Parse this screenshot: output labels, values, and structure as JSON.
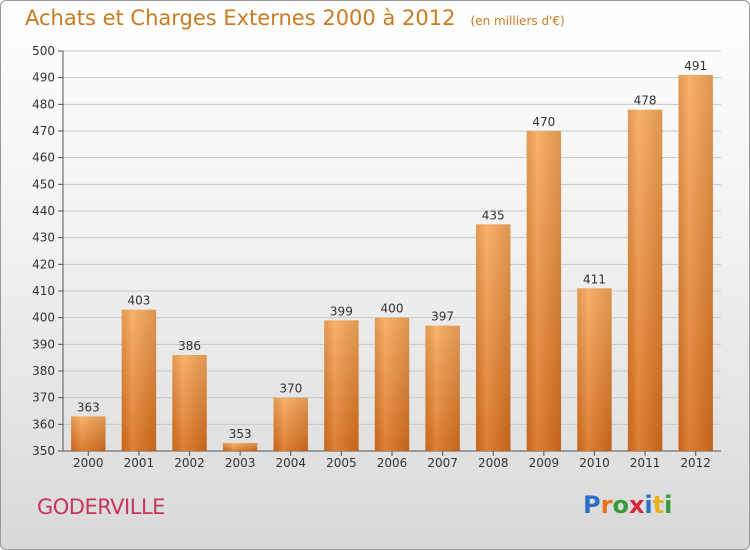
{
  "header": {
    "title": "Achats et Charges Externes 2000 à 2012",
    "unit": "(en milliers d'€)"
  },
  "footer": {
    "commune": "GODERVILLE",
    "logo_text": "Proxiti",
    "logo_colors": [
      "#2f6fc4",
      "#e8731a",
      "#3a9b3a",
      "#d8263a",
      "#2f6fc4",
      "#e8b21a",
      "#3a9b3a"
    ]
  },
  "colors": {
    "bar_light": "#f7a85a",
    "bar_dark": "#d86e1c",
    "grid": "#c8c8c8",
    "axis_text": "#333333",
    "title": "#ca7a1f"
  },
  "chart_data": {
    "type": "bar",
    "title": "Achats et Charges Externes 2000 à 2012",
    "subtitle": "(en milliers d'€)",
    "categories": [
      "2000",
      "2001",
      "2002",
      "2003",
      "2004",
      "2005",
      "2006",
      "2007",
      "2008",
      "2009",
      "2010",
      "2011",
      "2012"
    ],
    "values": [
      363,
      403,
      386,
      353,
      370,
      399,
      400,
      397,
      435,
      470,
      411,
      478,
      491
    ],
    "ylim": [
      350,
      500
    ],
    "ytick_step": 10,
    "grid": true
  }
}
